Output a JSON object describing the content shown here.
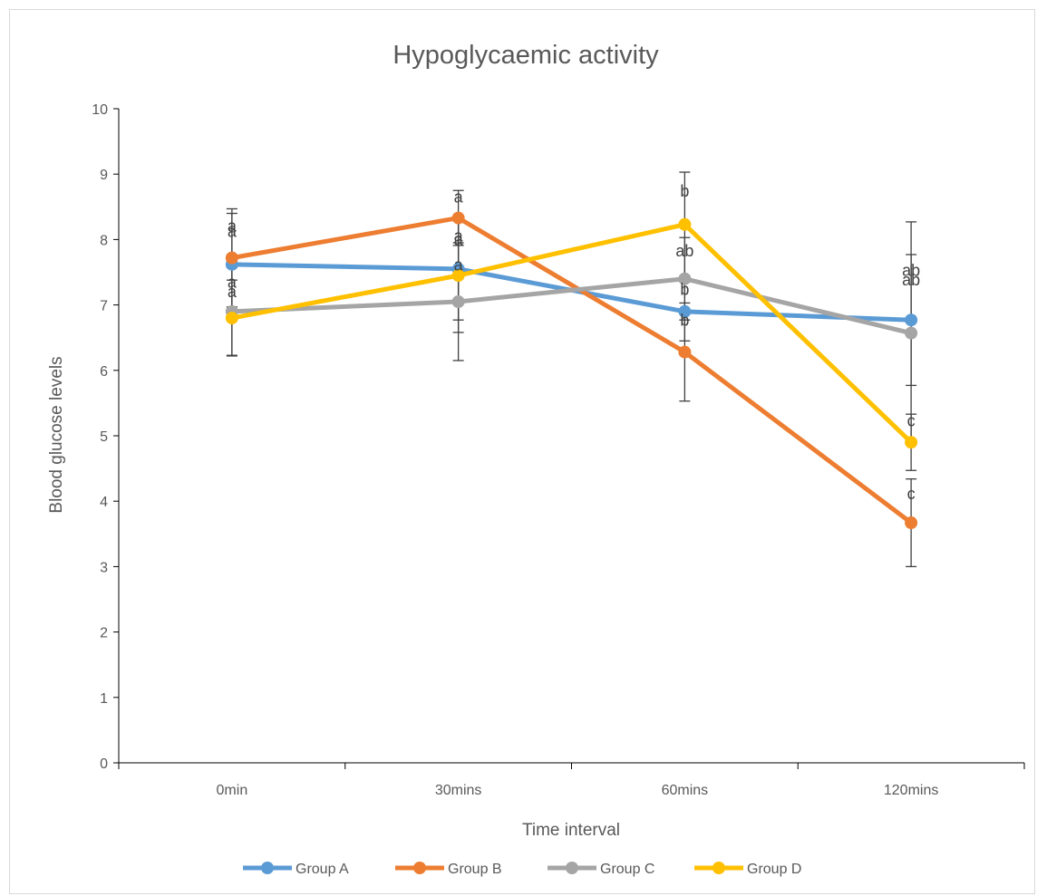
{
  "chart_data": {
    "type": "line",
    "title": "Hypoglycaemic activity",
    "xlabel": "Time interval",
    "ylabel": "Blood glucose levels",
    "categories": [
      "0min",
      "30mins",
      "60mins",
      "120mins"
    ],
    "ylim": [
      0,
      10
    ],
    "yticks": [
      0,
      1,
      2,
      3,
      4,
      5,
      6,
      7,
      8,
      9,
      10
    ],
    "grid": false,
    "legend_position": "bottom",
    "series": [
      {
        "name": "Group A",
        "color": "#5b9bd5",
        "values": [
          7.62,
          7.55,
          6.9,
          6.77
        ],
        "error": [
          0.78,
          0.78,
          0.45,
          1.0
        ],
        "labels": [
          "a",
          "a",
          "b",
          "ab"
        ]
      },
      {
        "name": "Group B",
        "color": "#ed7d31",
        "values": [
          7.72,
          8.33,
          6.28,
          3.67
        ],
        "error": [
          0.75,
          0.42,
          0.75,
          0.67
        ],
        "labels": [
          "a",
          "a",
          "b",
          "c"
        ]
      },
      {
        "name": "Group C",
        "color": "#a5a5a5",
        "values": [
          6.9,
          7.05,
          7.4,
          6.57
        ],
        "error": [
          0.67,
          0.9,
          0.63,
          1.7
        ],
        "labels": [
          "a",
          "a",
          "ab",
          "ab"
        ]
      },
      {
        "name": "Group D",
        "color": "#ffc000",
        "values": [
          6.8,
          7.45,
          8.23,
          4.9
        ],
        "error": [
          0.58,
          0.87,
          0.8,
          0.43
        ],
        "labels": [
          "a",
          "a",
          "b",
          "c"
        ]
      }
    ]
  }
}
